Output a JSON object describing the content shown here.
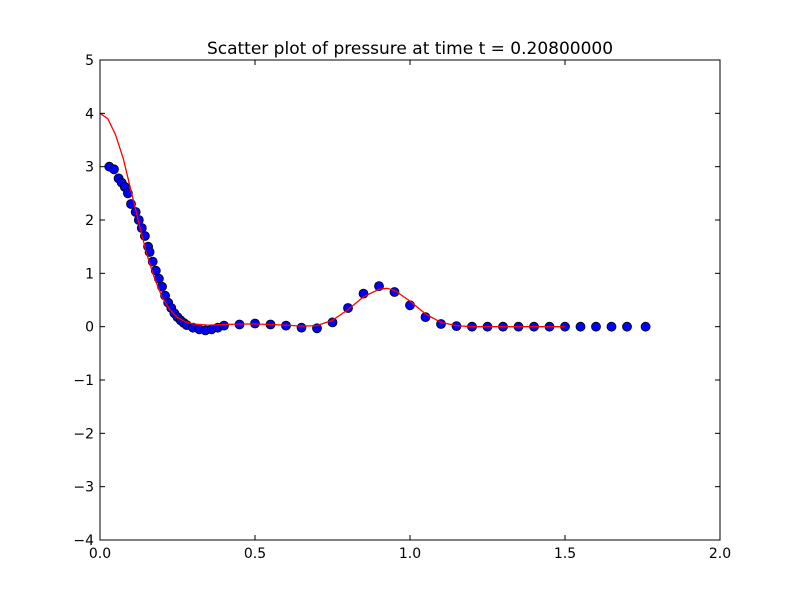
{
  "chart_data": {
    "type": "scatter",
    "title": "Scatter plot of pressure at time t =     0.20800000",
    "xlabel": "",
    "ylabel": "",
    "xlim": [
      0.0,
      2.0
    ],
    "ylim": [
      -4,
      5
    ],
    "grid": false,
    "x_ticks": [
      "0.0",
      "0.5",
      "1.0",
      "1.5",
      "2.0"
    ],
    "y_ticks": [
      "−4",
      "−3",
      "−2",
      "−1",
      "0",
      "1",
      "2",
      "3",
      "4",
      "5"
    ],
    "x_tick_values": [
      0.0,
      0.5,
      1.0,
      1.5,
      2.0
    ],
    "y_tick_values": [
      -4,
      -3,
      -2,
      -1,
      0,
      1,
      2,
      3,
      4,
      5
    ],
    "series": [
      {
        "kind": "scatter",
        "color": "#0000ff",
        "edge_color": "#000000",
        "x": [
          0.03,
          0.045,
          0.06,
          0.07,
          0.08,
          0.09,
          0.1,
          0.115,
          0.125,
          0.135,
          0.145,
          0.155,
          0.16,
          0.17,
          0.18,
          0.19,
          0.2,
          0.21,
          0.22,
          0.23,
          0.24,
          0.25,
          0.26,
          0.27,
          0.28,
          0.3,
          0.32,
          0.34,
          0.36,
          0.38,
          0.4,
          0.45,
          0.5,
          0.55,
          0.6,
          0.65,
          0.7,
          0.75,
          0.8,
          0.85,
          0.9,
          0.95,
          1.0,
          1.05,
          1.1,
          1.15,
          1.2,
          1.25,
          1.3,
          1.35,
          1.4,
          1.45,
          1.5,
          1.55,
          1.6,
          1.65,
          1.7,
          1.76
        ],
        "y": [
          3.0,
          2.95,
          2.78,
          2.7,
          2.62,
          2.5,
          2.3,
          2.15,
          2.0,
          1.85,
          1.7,
          1.5,
          1.4,
          1.22,
          1.05,
          0.9,
          0.75,
          0.58,
          0.45,
          0.35,
          0.25,
          0.18,
          0.12,
          0.07,
          0.03,
          -0.02,
          -0.05,
          -0.07,
          -0.05,
          -0.02,
          0.02,
          0.04,
          0.06,
          0.04,
          0.02,
          -0.02,
          -0.03,
          0.08,
          0.35,
          0.62,
          0.76,
          0.65,
          0.4,
          0.18,
          0.05,
          0.01,
          0.0,
          0.0,
          0.0,
          0.0,
          0.0,
          0.0,
          0.0,
          0.0,
          0.0,
          0.0,
          0.0,
          0.0
        ]
      },
      {
        "kind": "line",
        "color": "#ff0000",
        "x": [
          0.0,
          0.025,
          0.05,
          0.075,
          0.1,
          0.125,
          0.15,
          0.175,
          0.2,
          0.225,
          0.25,
          0.275,
          0.3,
          0.35,
          0.4,
          0.45,
          0.5,
          0.55,
          0.6,
          0.65,
          0.7,
          0.75,
          0.8,
          0.85,
          0.9,
          0.925,
          0.95,
          1.0,
          1.05,
          1.1,
          1.15,
          1.2,
          1.3,
          1.4,
          1.5
        ],
        "y": [
          4.0,
          3.9,
          3.6,
          3.15,
          2.55,
          1.95,
          1.38,
          0.92,
          0.56,
          0.32,
          0.17,
          0.09,
          0.05,
          0.03,
          0.04,
          0.05,
          0.05,
          0.04,
          0.03,
          0.01,
          0.02,
          0.12,
          0.32,
          0.56,
          0.7,
          0.72,
          0.68,
          0.48,
          0.24,
          0.08,
          0.02,
          0.0,
          0.0,
          0.0,
          0.0
        ]
      }
    ]
  }
}
